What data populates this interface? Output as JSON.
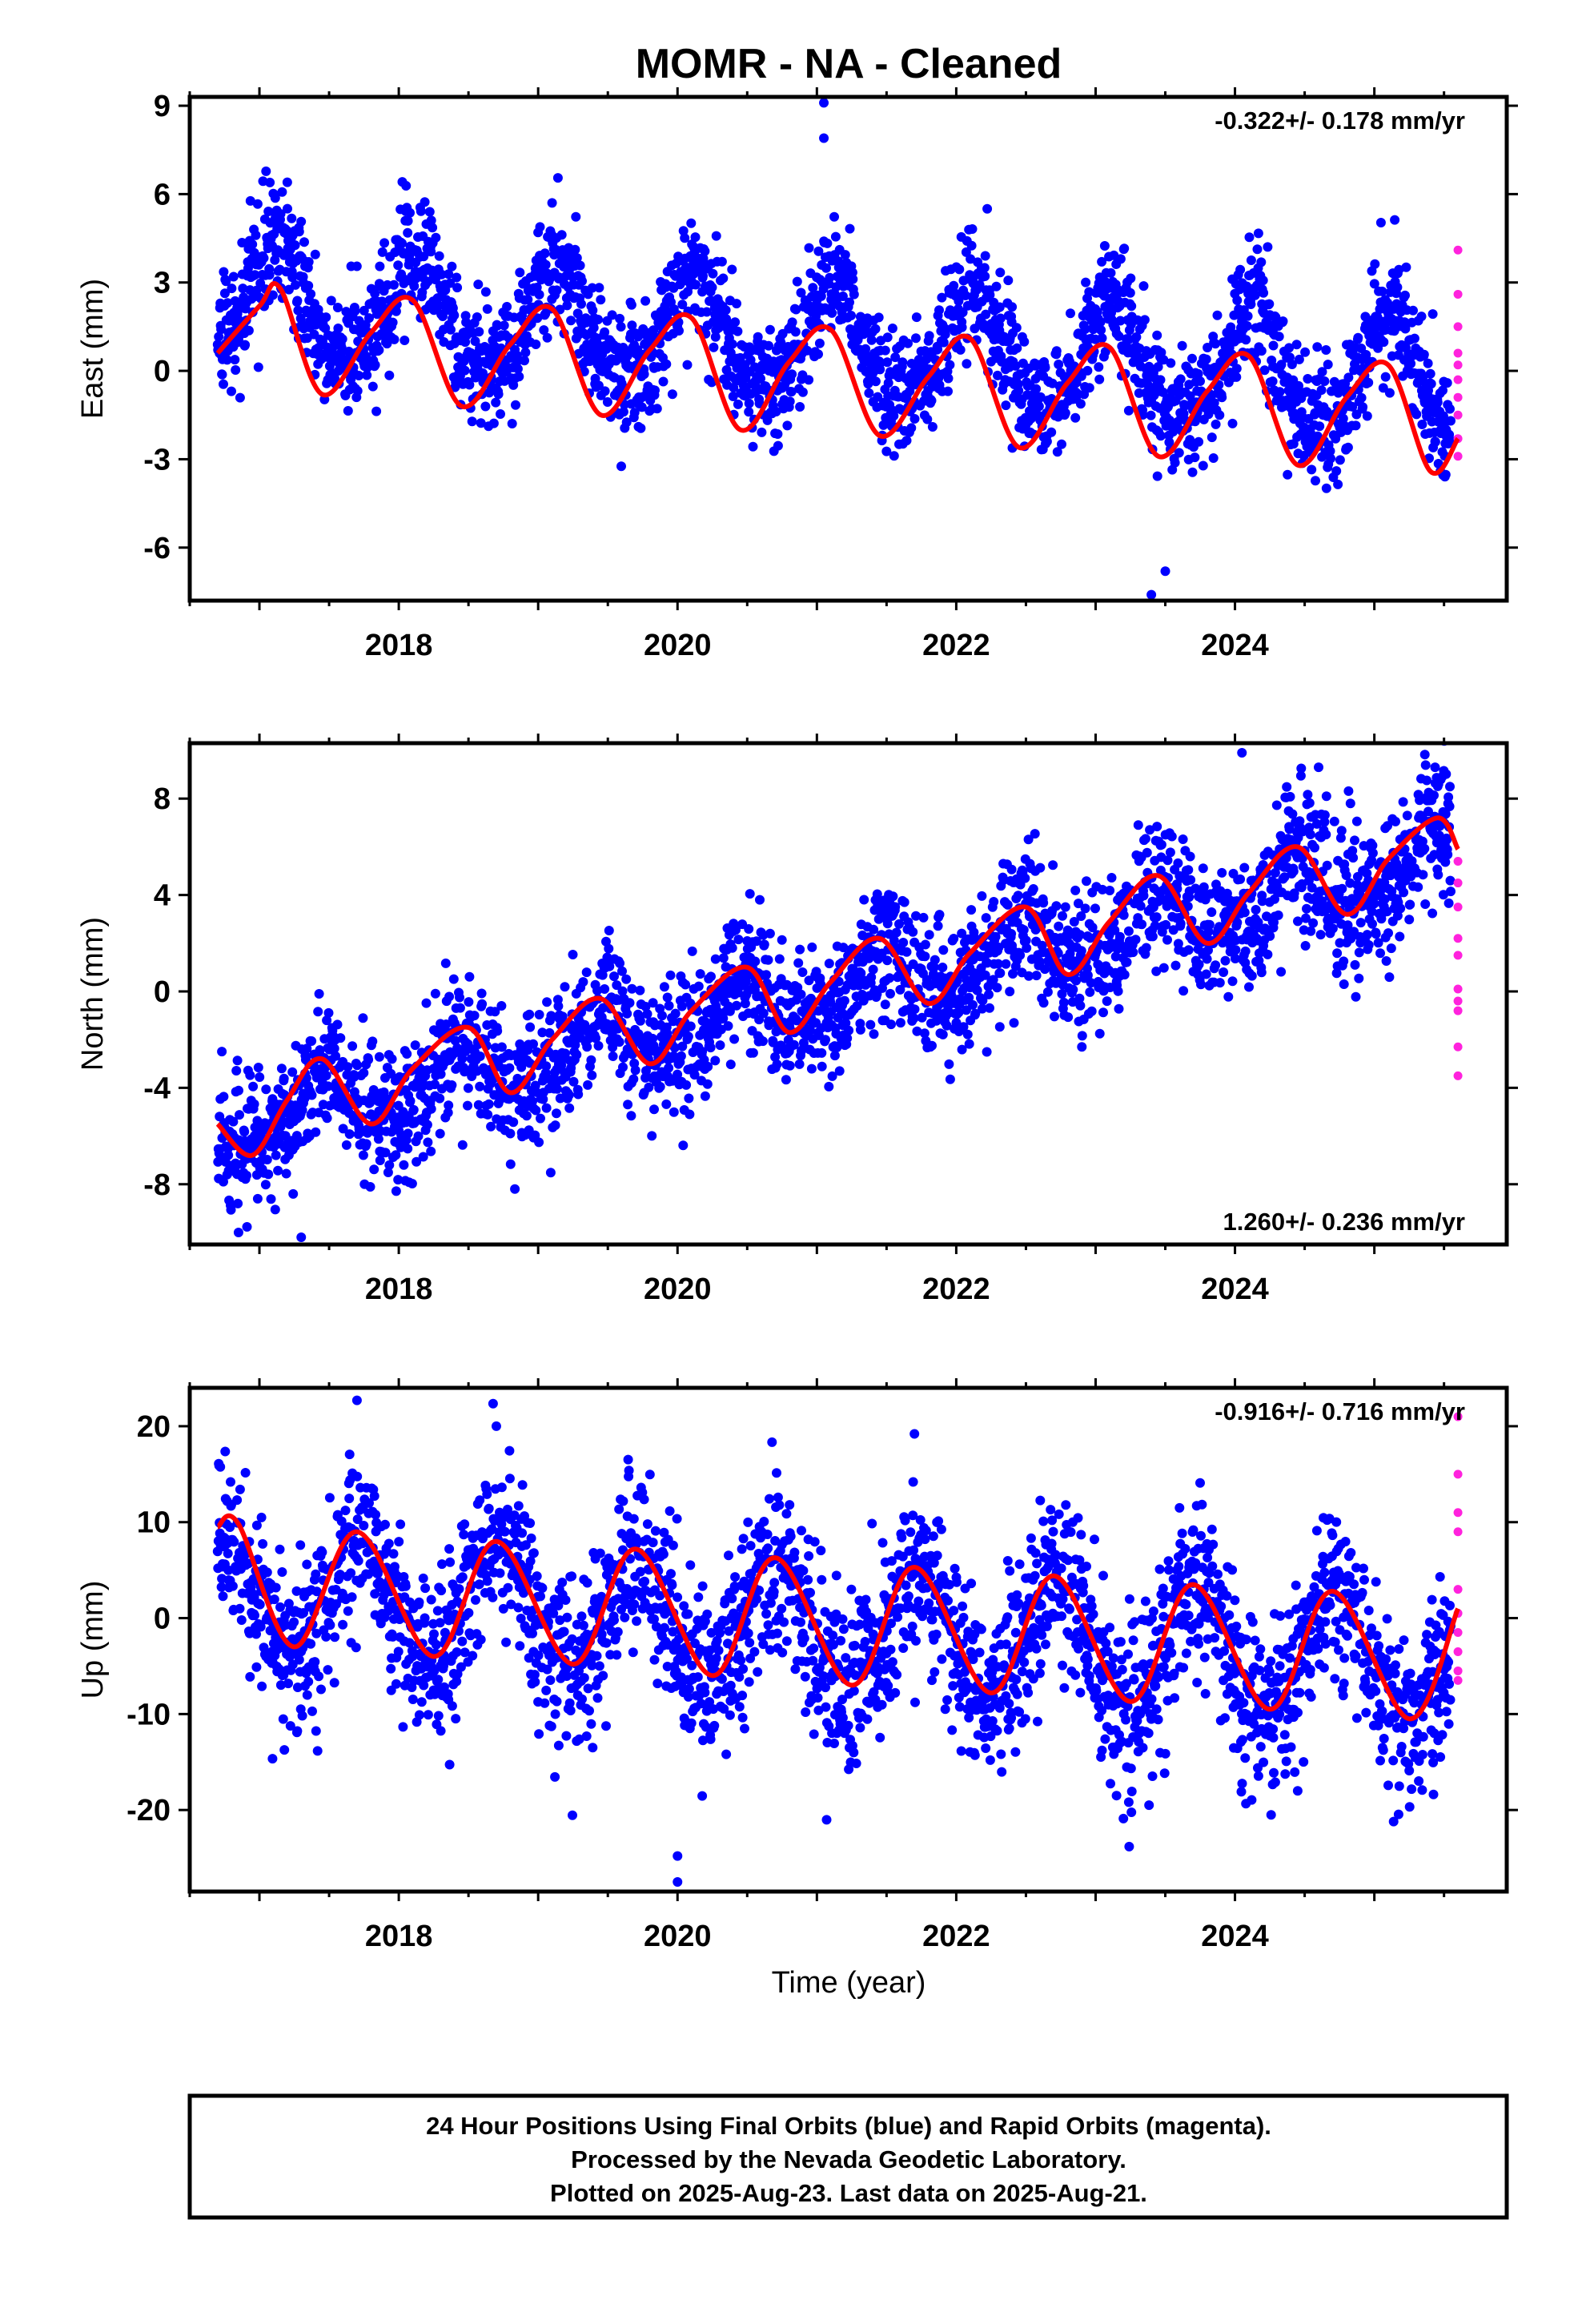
{
  "title": "MOMR  - NA - Cleaned",
  "xlabel": "Time (year)",
  "footer": [
    "24 Hour Positions Using Final Orbits (blue) and Rapid Orbits (magenta).",
    "Processed by the Nevada Geodetic Laboratory.",
    "Plotted on 2025-Aug-23. Last data on 2025-Aug-21."
  ],
  "colors": {
    "final": "#0000ff",
    "rapid": "#ff22dd",
    "model": "#ff0000"
  },
  "chart_data": [
    {
      "type": "scatter",
      "ylabel": "East (mm)",
      "rate_label": "-0.322+/- 0.178 mm/yr",
      "rate_placement": "top-right",
      "xlim": [
        2016.5,
        2025.95
      ],
      "ylim": [
        -7.8,
        9.3
      ],
      "x_ticks": [
        2018,
        2020,
        2022,
        2024
      ],
      "y_ticks": [
        -6,
        -3,
        0,
        3,
        6,
        9
      ],
      "model": {
        "offset": 2.4,
        "slope": -0.322,
        "annual_amp": 1.9,
        "semiannual_amp": 0.3,
        "phase_peak": 0.12
      },
      "scatter_sd": 1.0,
      "series": [
        {
          "x": [
            2016.7,
            2017.0,
            2017.15,
            2017.45,
            2017.8,
            2018.1,
            2018.45,
            2018.8,
            2019.1,
            2019.45,
            2019.8,
            2020.1,
            2020.45,
            2020.8,
            2021.1,
            2021.45,
            2021.8,
            2022.1,
            2022.45,
            2022.8,
            2023.1,
            2023.45,
            2023.8,
            2024.1,
            2024.45,
            2024.8,
            2025.1,
            2025.4,
            2025.6
          ],
          "y": [
            0.6,
            2.2,
            2.8,
            -0.8,
            1.3,
            2.4,
            -1.2,
            0.9,
            2.1,
            -1.5,
            0.7,
            1.8,
            -2.0,
            0.3,
            1.4,
            -2.2,
            -0.2,
            1.1,
            -2.6,
            -0.4,
            0.8,
            -2.9,
            -0.7,
            0.5,
            -3.2,
            -0.9,
            0.2,
            -3.4,
            -2.3
          ]
        }
      ],
      "outliers": [
        {
          "x": 2021.05,
          "y": 9.1
        },
        {
          "x": 2021.05,
          "y": 7.9
        },
        {
          "x": 2017.2,
          "y": 6.4
        },
        {
          "x": 2019.1,
          "y": 5.7
        },
        {
          "x": 2023.4,
          "y": -7.6
        },
        {
          "x": 2023.5,
          "y": -6.8
        }
      ],
      "rapid": {
        "x": [
          2025.6,
          2025.6,
          2025.6,
          2025.6,
          2025.6,
          2025.6,
          2025.6,
          2025.6,
          2025.6,
          2025.6
        ],
        "y": [
          4.1,
          2.6,
          1.5,
          0.6,
          0.2,
          -0.3,
          -0.9,
          -1.5,
          -2.3,
          -2.9
        ]
      }
    },
    {
      "type": "scatter",
      "ylabel": "North (mm)",
      "rate_label": "1.260+/- 0.236 mm/yr",
      "rate_placement": "bottom-right",
      "xlim": [
        2016.5,
        2025.95
      ],
      "ylim": [
        -10.5,
        10.3
      ],
      "x_ticks": [
        2018,
        2020,
        2022,
        2024
      ],
      "y_ticks": [
        -8,
        -4,
        0,
        4,
        8
      ],
      "model": {
        "offset": -5.6,
        "slope": 1.26,
        "annual_amp": 1.2,
        "semiannual_amp": 0.3,
        "phase_peak": 0.45
      },
      "scatter_sd": 1.4,
      "series": [
        {
          "x": [
            2016.7,
            2016.95,
            2017.2,
            2017.45,
            2017.8,
            2018.1,
            2018.5,
            2018.8,
            2019.1,
            2019.45,
            2019.8,
            2020.1,
            2020.5,
            2020.8,
            2021.1,
            2021.45,
            2021.8,
            2022.1,
            2022.5,
            2022.8,
            2023.1,
            2023.45,
            2023.8,
            2024.1,
            2024.45,
            2024.8,
            2025.1,
            2025.45,
            2025.6
          ],
          "y": [
            -5.5,
            -6.8,
            -4.5,
            -2.8,
            -5.5,
            -3.2,
            -1.5,
            -4.2,
            -2.0,
            -0.3,
            -3.0,
            -0.8,
            1.0,
            -1.7,
            0.4,
            2.2,
            -0.5,
            1.6,
            3.5,
            0.7,
            2.9,
            4.8,
            2.0,
            4.1,
            6.0,
            3.2,
            5.5,
            7.2,
            5.9
          ]
        }
      ],
      "outliers": [
        {
          "x": 2024.05,
          "y": 9.9
        },
        {
          "x": 2024.6,
          "y": 9.3
        },
        {
          "x": 2017.3,
          "y": -10.2
        },
        {
          "x": 2016.85,
          "y": -10.0
        }
      ],
      "rapid": {
        "x": [
          2025.6,
          2025.6,
          2025.6,
          2025.6,
          2025.6,
          2025.6,
          2025.6,
          2025.6,
          2025.6,
          2025.6
        ],
        "y": [
          5.4,
          4.5,
          3.5,
          2.2,
          1.5,
          0.1,
          -0.4,
          -0.8,
          -2.3,
          -3.5
        ]
      }
    },
    {
      "type": "scatter",
      "ylabel": "Up (mm)",
      "rate_label": "-0.916+/- 0.716 mm/yr",
      "rate_placement": "top-right",
      "xlim": [
        2016.5,
        2025.95
      ],
      "ylim": [
        -28.5,
        24.0
      ],
      "x_ticks": [
        2018,
        2020,
        2022,
        2024
      ],
      "y_ticks": [
        -20,
        -10,
        0,
        10,
        20
      ],
      "model": {
        "offset": 3.0,
        "slope": -0.916,
        "annual_amp": 6.3,
        "semiannual_amp": 0.5,
        "phase_peak": 0.72
      },
      "scatter_sd": 4.5,
      "series": [
        {
          "x": [
            2016.7,
            2016.85,
            2017.25,
            2017.7,
            2018.25,
            2018.7,
            2019.25,
            2019.7,
            2020.25,
            2020.7,
            2021.25,
            2021.7,
            2022.25,
            2022.7,
            2023.25,
            2023.7,
            2024.25,
            2024.7,
            2025.25,
            2025.6
          ],
          "y": [
            9.5,
            9.8,
            -3.0,
            9.0,
            -4.0,
            8.0,
            -4.8,
            7.2,
            -6.0,
            6.3,
            -7.0,
            5.3,
            -7.8,
            4.4,
            -8.7,
            3.5,
            -9.5,
            2.8,
            -10.5,
            1.0
          ]
        }
      ],
      "outliers": [
        {
          "x": 2017.7,
          "y": 22.7
        },
        {
          "x": 2020.0,
          "y": -27.5
        },
        {
          "x": 2020.0,
          "y": -24.8
        },
        {
          "x": 2018.7,
          "y": 20.0
        },
        {
          "x": 2021.7,
          "y": 19.2
        },
        {
          "x": 2023.15,
          "y": -18.5
        },
        {
          "x": 2024.45,
          "y": -18.0
        }
      ],
      "rapid": {
        "x": [
          2025.6,
          2025.6,
          2025.6,
          2025.6,
          2025.6,
          2025.6,
          2025.6,
          2025.6,
          2025.6,
          2025.6
        ],
        "y": [
          21.0,
          15.0,
          11.0,
          9.0,
          3.0,
          0.5,
          -1.5,
          -3.5,
          -5.5,
          -6.5
        ]
      }
    }
  ]
}
